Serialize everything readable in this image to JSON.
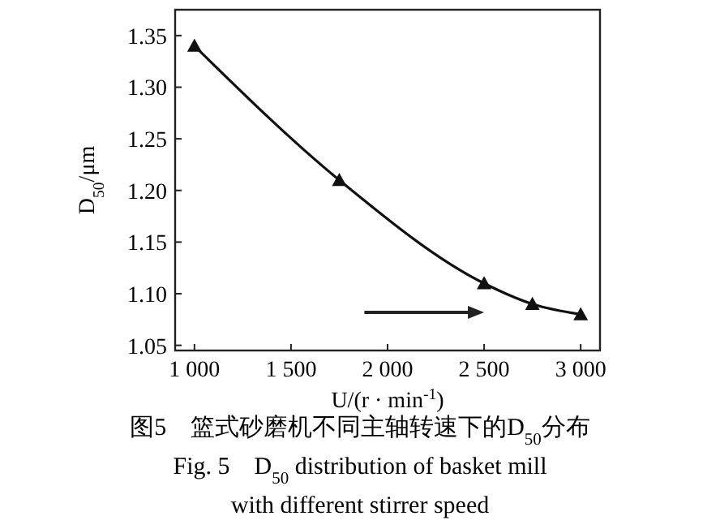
{
  "chart_data": {
    "type": "line",
    "xlabel": "U/(r · min$^{-1}$)",
    "ylabel": "D$_{50}$/μm",
    "x": [
      1000,
      1750,
      2500,
      2750,
      3000
    ],
    "series": [
      {
        "color": "#111111",
        "values": [
          1.34,
          1.21,
          1.11,
          1.09,
          1.08
        ]
      }
    ],
    "marker": "triangle",
    "line_style": "solid",
    "grid": false,
    "xlim": [
      900,
      3100
    ],
    "xticks": [
      {
        "value": 1000,
        "label": "1 000"
      },
      {
        "value": 1500,
        "label": "1 500"
      },
      {
        "value": 2000,
        "label": "2 000"
      },
      {
        "value": 2500,
        "label": "2 500"
      },
      {
        "value": 3000,
        "label": "3 000"
      }
    ],
    "ylim": [
      1.045,
      1.375
    ],
    "yticks": [
      {
        "value": 1.05,
        "label": "1.05"
      },
      {
        "value": 1.1,
        "label": "1.10"
      },
      {
        "value": 1.15,
        "label": "1.15"
      },
      {
        "value": 1.2,
        "label": "1.20"
      },
      {
        "value": 1.25,
        "label": "1.25"
      },
      {
        "value": 1.3,
        "label": "1.30"
      },
      {
        "value": 1.35,
        "label": "1.35"
      }
    ],
    "annotations": [
      "图5　篮式砂磨机不同主轴转速下的D$_{50}$分布",
      "Fig. 5　D$_{50}$ distribution of basket mill",
      "with different stirrer speed"
    ]
  }
}
